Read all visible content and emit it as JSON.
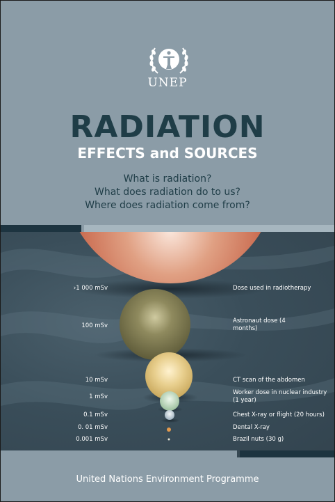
{
  "brand": {
    "name": "UNEP"
  },
  "title": "RADIATION",
  "subtitle": "EFFECTS and SOURCES",
  "questions": [
    "What is radiation?",
    "What does radiation do to us?",
    "Where does radiation come from?"
  ],
  "scale": [
    {
      "dose": "›1 000 mSv",
      "desc": "Dose used in radiotherapy"
    },
    {
      "dose": "100 mSv",
      "desc": "Astronaut dose (4 months)"
    },
    {
      "dose": "10 mSv",
      "desc": "CT scan of the abdomen"
    },
    {
      "dose": "1 mSv",
      "desc": "Worker dose in nuclear industry (1 year)"
    },
    {
      "dose": "0.1 mSv",
      "desc": "Chest X-ray or flight (20 hours)"
    },
    {
      "dose": "0. 01 mSv",
      "desc": "Dental X-ray"
    },
    {
      "dose": "0.001 mSv",
      "desc": "Brazil nuts (30 g)"
    }
  ],
  "footer": "United Nations Environment Programme",
  "colors": {
    "background_grey": "#8b9ca7",
    "title_dark": "#1f3d47",
    "panel_dark": "#33444f"
  }
}
